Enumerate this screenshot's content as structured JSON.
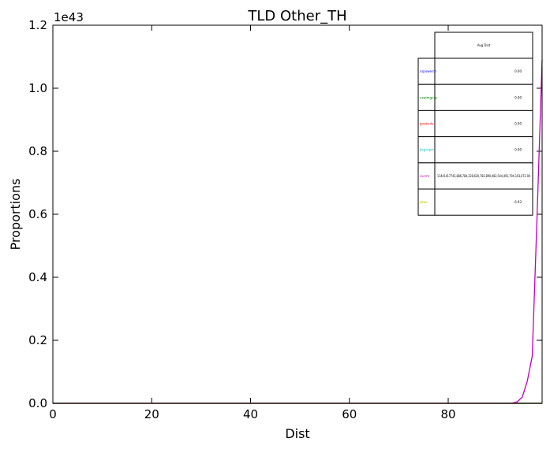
{
  "chart_data": {
    "type": "line",
    "title": "TLD Other_TH",
    "xlabel": "Dist",
    "ylabel": "Proportions",
    "y_offset_label": "1e43",
    "xlim": [
      0,
      99
    ],
    "ylim": [
      0,
      1.2
    ],
    "x_ticks": [
      "0",
      "20",
      "40",
      "60",
      "80"
    ],
    "y_ticks": [
      "0.0",
      "0.2",
      "0.4",
      "0.6",
      "0.8",
      "1.0",
      "1.2"
    ],
    "series": [
      {
        "color": "#0000ff",
        "x": [
          0,
          99
        ],
        "y": [
          0,
          0
        ]
      },
      {
        "color": "#008000",
        "x": [
          0,
          99
        ],
        "y": [
          0,
          0
        ]
      },
      {
        "color": "#ff0000",
        "x": [
          0,
          99
        ],
        "y": [
          0,
          0
        ]
      },
      {
        "color": "#00bfbf",
        "x": [
          0,
          99
        ],
        "y": [
          0,
          0
        ]
      },
      {
        "color": "#bf00bf",
        "x": [
          0,
          10,
          20,
          30,
          40,
          50,
          60,
          70,
          80,
          90,
          92,
          93,
          94,
          95,
          96,
          97,
          98,
          99
        ],
        "y": [
          0,
          0,
          0,
          0,
          0,
          0,
          0,
          0,
          0,
          0,
          0.0001,
          0.001,
          0.005,
          0.02,
          0.07,
          0.15,
          0.6,
          1.09
        ]
      },
      {
        "color": "#bfbf00",
        "x": [
          0,
          99
        ],
        "y": [
          0,
          0
        ]
      }
    ],
    "legend_table": {
      "header": "Avg Dist",
      "rows": [
        {
          "label": "cspowercn",
          "color": "#0000ff",
          "value": "0.00"
        },
        {
          "label": "cswimgcsa",
          "color": "#008000",
          "value": "0.00"
        },
        {
          "label": "gnetcnts",
          "color": "#ff0000",
          "value": "0.00"
        },
        {
          "label": "bvgnrpm",
          "color": "#00bfbf",
          "value": "0.00"
        },
        {
          "label": "svcrm",
          "color": "#bf00bf",
          "value": "11441417743,886,784,228,620,782,890,482,544,491,794,103,672.00"
        },
        {
          "label": "ptwo",
          "color": "#bfbf00",
          "value": "6.93"
        }
      ]
    }
  }
}
